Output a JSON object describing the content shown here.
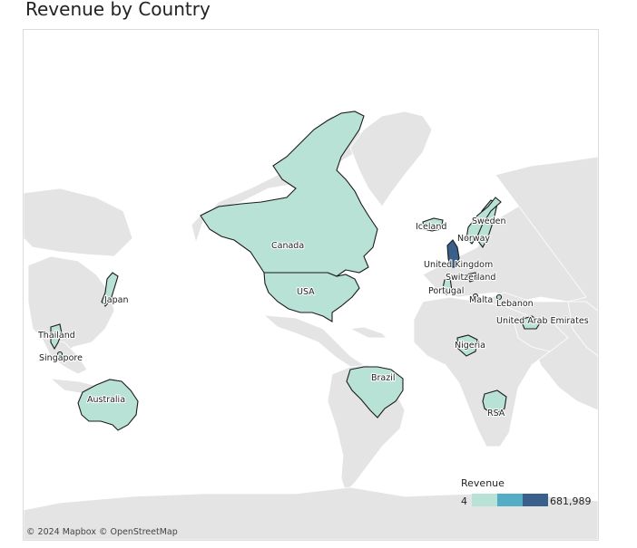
{
  "title": "Revenue by Country",
  "attribution": "© 2024 Mapbox © OpenStreetMap",
  "colors": {
    "land": "#e4e4e4",
    "water": "#ffffff",
    "low": "#b9e2d6",
    "mid": "#55adc5",
    "high": "#3a5f8a",
    "border": "#1b1b1b"
  },
  "legend": {
    "title": "Revenue",
    "min": "4",
    "max": "681,989",
    "ramp": [
      "#b9e2d6",
      "#55adc5",
      "#3a5f8a"
    ]
  },
  "countries": [
    {
      "id": "canada",
      "label": "Canada",
      "level": "low"
    },
    {
      "id": "usa",
      "label": "USA",
      "level": "low"
    },
    {
      "id": "brazil",
      "label": "Brazil",
      "level": "low"
    },
    {
      "id": "australia",
      "label": "Australia",
      "level": "low"
    },
    {
      "id": "japan",
      "label": "Japan",
      "level": "low"
    },
    {
      "id": "thailand",
      "label": "Thailand",
      "level": "low"
    },
    {
      "id": "singapore",
      "label": "Singapore",
      "level": "low"
    },
    {
      "id": "iceland",
      "label": "Iceland",
      "level": "low"
    },
    {
      "id": "sweden",
      "label": "Sweden",
      "level": "low"
    },
    {
      "id": "norway",
      "label": "Norway",
      "level": "low"
    },
    {
      "id": "uk",
      "label": "United Kingdom",
      "level": "high"
    },
    {
      "id": "switzerland",
      "label": "Switzerland",
      "level": "low"
    },
    {
      "id": "portugal",
      "label": "Portugal",
      "level": "low"
    },
    {
      "id": "malta",
      "label": "Malta",
      "level": "low"
    },
    {
      "id": "lebanon",
      "label": "Lebanon",
      "level": "low"
    },
    {
      "id": "uae",
      "label": "United Arab Emirates",
      "level": "low"
    },
    {
      "id": "nigeria",
      "label": "Nigeria",
      "level": "low"
    },
    {
      "id": "rsa",
      "label": "RSA",
      "level": "low"
    }
  ]
}
